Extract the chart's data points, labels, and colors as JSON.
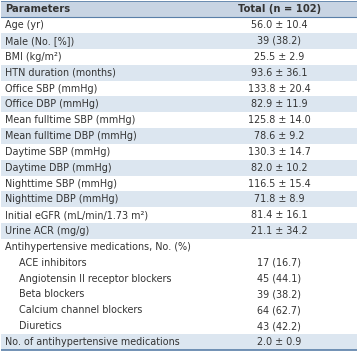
{
  "header": [
    "Parameters",
    "Total (n = 102)"
  ],
  "rows": [
    {
      "label": "Age (yr)",
      "value": "56.0 ± 10.4",
      "indent": 0,
      "shaded": false
    },
    {
      "label": "Male (No. [%])",
      "value": "39 (38.2)",
      "indent": 0,
      "shaded": true
    },
    {
      "label": "BMI (kg/m²)",
      "value": "25.5 ± 2.9",
      "indent": 0,
      "shaded": false
    },
    {
      "label": "HTN duration (months)",
      "value": "93.6 ± 36.1",
      "indent": 0,
      "shaded": true
    },
    {
      "label": "Office SBP (mmHg)",
      "value": "133.8 ± 20.4",
      "indent": 0,
      "shaded": false
    },
    {
      "label": "Office DBP (mmHg)",
      "value": "82.9 ± 11.9",
      "indent": 0,
      "shaded": true
    },
    {
      "label": "Mean fulltime SBP (mmHg)",
      "value": "125.8 ± 14.0",
      "indent": 0,
      "shaded": false
    },
    {
      "label": "Mean fulltime DBP (mmHg)",
      "value": "78.6 ± 9.2",
      "indent": 0,
      "shaded": true
    },
    {
      "label": "Daytime SBP (mmHg)",
      "value": "130.3 ± 14.7",
      "indent": 0,
      "shaded": false
    },
    {
      "label": "Daytime DBP (mmHg)",
      "value": "82.0 ± 10.2",
      "indent": 0,
      "shaded": true
    },
    {
      "label": "Nighttime SBP (mmHg)",
      "value": "116.5 ± 15.4",
      "indent": 0,
      "shaded": false
    },
    {
      "label": "Nighttime DBP (mmHg)",
      "value": "71.8 ± 8.9",
      "indent": 0,
      "shaded": true
    },
    {
      "label": "Initial eGFR (mL/min/1.73 m²)",
      "value": "81.4 ± 16.1",
      "indent": 0,
      "shaded": false
    },
    {
      "label": "Urine ACR (mg/g)",
      "value": "21.1 ± 34.2",
      "indent": 0,
      "shaded": true
    },
    {
      "label": "Antihypertensive medications, No. (%)",
      "value": "",
      "indent": 0,
      "shaded": false
    },
    {
      "label": "ACE inhibitors",
      "value": "17 (16.7)",
      "indent": 1,
      "shaded": false
    },
    {
      "label": "Angiotensin II receptor blockers",
      "value": "45 (44.1)",
      "indent": 1,
      "shaded": false
    },
    {
      "label": "Beta blockers",
      "value": "39 (38.2)",
      "indent": 1,
      "shaded": false
    },
    {
      "label": "Calcium channel blockers",
      "value": "64 (62.7)",
      "indent": 1,
      "shaded": false
    },
    {
      "label": "Diuretics",
      "value": "43 (42.2)",
      "indent": 1,
      "shaded": false
    },
    {
      "label": "No. of antihypertensive medications",
      "value": "2.0 ± 0.9",
      "indent": 0,
      "shaded": true
    }
  ],
  "header_bg": "#c8d4e3",
  "shaded_bg": "#dce6f0",
  "white_bg": "#ffffff",
  "header_fontsize": 7.2,
  "body_fontsize": 6.9,
  "line_color": "#5a7fa8",
  "col_split": 0.565,
  "text_color": "#333333"
}
